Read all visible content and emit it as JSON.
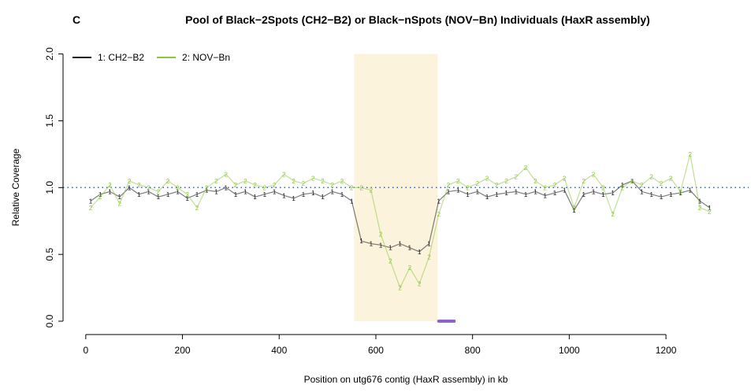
{
  "chart_data": {
    "type": "line",
    "panel": "C",
    "title": "Pool of Black−2Spots (CH2−B2) or Black−nSpots (NOV−Bn) Individuals (HaxR assembly)",
    "x_label": "Position on utg676 contig (HaxR assembly) in kb",
    "y_label": "Relative Coverage",
    "x": [
      10,
      30,
      50,
      70,
      90,
      110,
      130,
      150,
      170,
      190,
      210,
      230,
      250,
      270,
      290,
      310,
      330,
      350,
      370,
      390,
      410,
      430,
      450,
      470,
      490,
      510,
      530,
      550,
      570,
      590,
      610,
      630,
      650,
      670,
      690,
      710,
      730,
      750,
      770,
      790,
      810,
      830,
      850,
      870,
      890,
      910,
      930,
      950,
      970,
      990,
      1010,
      1030,
      1050,
      1070,
      1090,
      1110,
      1130,
      1150,
      1170,
      1190,
      1210,
      1230,
      1250,
      1270,
      1290
    ],
    "series": [
      {
        "name": "1: CH2−B2",
        "marker": "1",
        "color": "#111111",
        "values": [
          0.9,
          0.95,
          0.97,
          0.93,
          1.0,
          0.95,
          0.97,
          0.93,
          0.95,
          0.97,
          0.92,
          0.95,
          0.98,
          0.97,
          1.0,
          0.95,
          0.97,
          0.93,
          0.95,
          0.97,
          0.94,
          0.92,
          0.95,
          0.96,
          0.93,
          0.97,
          0.95,
          0.9,
          0.6,
          0.58,
          0.57,
          0.55,
          0.58,
          0.55,
          0.52,
          0.58,
          0.9,
          0.97,
          0.98,
          0.95,
          0.97,
          0.93,
          0.95,
          0.96,
          0.97,
          0.95,
          0.97,
          0.94,
          0.96,
          0.98,
          0.83,
          0.95,
          0.97,
          0.95,
          0.96,
          1.02,
          1.05,
          0.97,
          0.95,
          0.93,
          0.95,
          0.96,
          0.98,
          0.9,
          0.85
        ]
      },
      {
        "name": "2: NOV−Bn",
        "marker": "2",
        "color": "#8cc63f",
        "values": [
          0.85,
          0.93,
          1.02,
          0.88,
          1.05,
          1.02,
          1.0,
          0.97,
          1.05,
          1.0,
          0.95,
          0.85,
          1.0,
          1.05,
          1.1,
          1.02,
          1.05,
          1.02,
          1.0,
          1.02,
          1.1,
          1.05,
          1.03,
          1.07,
          1.05,
          1.02,
          1.05,
          1.0,
          1.0,
          0.98,
          0.65,
          0.45,
          0.25,
          0.4,
          0.28,
          0.48,
          0.8,
          1.02,
          1.05,
          1.0,
          1.03,
          1.07,
          1.02,
          1.05,
          1.08,
          1.15,
          1.05,
          1.0,
          1.02,
          1.07,
          0.85,
          1.05,
          1.1,
          1.0,
          0.8,
          1.0,
          1.05,
          1.02,
          1.08,
          1.03,
          1.07,
          0.97,
          1.25,
          0.85,
          0.82
        ]
      }
    ],
    "xlim": [
      -47,
      1371
    ],
    "ylim": [
      -0.1,
      2.08
    ],
    "xticks": [
      0,
      200,
      400,
      600,
      800,
      1000,
      1200
    ],
    "yticks": [
      {
        "value": 0,
        "label": "0.0"
      },
      {
        "value": 0.5,
        "label": "0.5"
      },
      {
        "value": 1,
        "label": "1.0"
      },
      {
        "value": 1.5,
        "label": "1.5"
      },
      {
        "value": 2,
        "label": "2.0"
      }
    ],
    "reference_line": 1,
    "reference_color": "#3a5fa8",
    "highlight": {
      "x": [
        555,
        728
      ],
      "y": [
        0,
        2
      ],
      "color": "#fcf3dd"
    },
    "segment": {
      "x": [
        730,
        762
      ],
      "y": 0,
      "color": "#8e63c6"
    },
    "legend": "top-left"
  }
}
